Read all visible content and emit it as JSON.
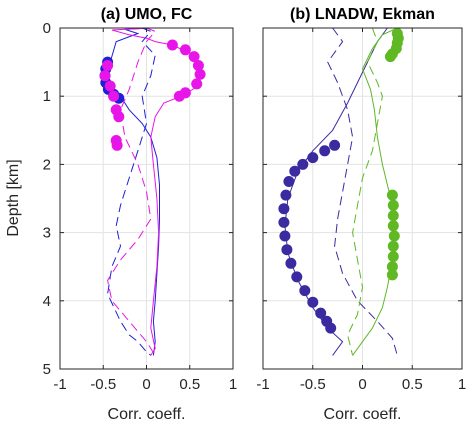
{
  "chart_data": [
    {
      "type": "line",
      "title": "(a) UMO, FC",
      "xlabel": "Corr. coeff.",
      "ylabel": "Depth [km]",
      "xlim": [
        -1,
        1
      ],
      "ylim": [
        0,
        5
      ],
      "y_reversed": true,
      "grid": true,
      "xticks": [
        "-1",
        "-0.5",
        "0",
        "0.5",
        "1"
      ],
      "yticks": [
        "0",
        "1",
        "2",
        "3",
        "4",
        "5"
      ],
      "series": [
        {
          "color": "#1f1fd6",
          "style": "solid",
          "points": [
            [
              0.05,
              0.0
            ],
            [
              -0.25,
              0.02
            ],
            [
              -0.1,
              0.08
            ],
            [
              -0.35,
              0.2
            ],
            [
              -0.42,
              0.5
            ],
            [
              -0.45,
              0.7
            ],
            [
              -0.42,
              0.9
            ],
            [
              -0.3,
              1.0
            ],
            [
              -0.2,
              1.2
            ],
            [
              -0.05,
              1.4
            ],
            [
              0.05,
              1.6
            ],
            [
              0.12,
              1.9
            ],
            [
              0.15,
              2.3
            ],
            [
              0.15,
              2.8
            ],
            [
              0.14,
              3.2
            ],
            [
              0.12,
              3.6
            ],
            [
              0.1,
              4.0
            ],
            [
              0.08,
              4.3
            ],
            [
              0.1,
              4.6
            ],
            [
              0.08,
              4.8
            ]
          ],
          "markers": [
            [
              -0.45,
              0.5
            ],
            [
              -0.47,
              0.6
            ],
            [
              -0.48,
              0.7
            ],
            [
              -0.47,
              0.8
            ],
            [
              -0.44,
              0.9
            ],
            [
              -0.38,
              0.97
            ],
            [
              -0.32,
              1.03
            ]
          ]
        },
        {
          "color": "#e815e8",
          "style": "solid",
          "points": [
            [
              0.05,
              0.0
            ],
            [
              -0.4,
              0.03
            ],
            [
              -0.2,
              0.1
            ],
            [
              0.0,
              0.15
            ],
            [
              0.1,
              0.2
            ],
            [
              0.3,
              0.25
            ],
            [
              0.55,
              0.4
            ],
            [
              0.62,
              0.65
            ],
            [
              0.6,
              0.85
            ],
            [
              0.4,
              1.0
            ],
            [
              0.2,
              1.1
            ],
            [
              0.1,
              1.3
            ],
            [
              0.05,
              1.6
            ],
            [
              0.08,
              2.0
            ],
            [
              0.12,
              2.5
            ],
            [
              0.14,
              3.0
            ],
            [
              0.12,
              3.5
            ],
            [
              0.08,
              4.0
            ],
            [
              0.05,
              4.4
            ],
            [
              0.1,
              4.7
            ],
            [
              0.05,
              4.8
            ]
          ],
          "markers": [
            [
              0.3,
              0.25
            ],
            [
              0.45,
              0.32
            ],
            [
              0.55,
              0.42
            ],
            [
              0.6,
              0.55
            ],
            [
              0.62,
              0.68
            ],
            [
              0.58,
              0.82
            ],
            [
              0.45,
              0.95
            ],
            [
              0.38,
              1.0
            ],
            [
              -0.45,
              0.55
            ],
            [
              -0.48,
              0.7
            ],
            [
              -0.42,
              0.85
            ],
            [
              -0.38,
              1.0
            ],
            [
              -0.35,
              1.2
            ],
            [
              -0.32,
              1.3
            ],
            [
              -0.35,
              1.65
            ],
            [
              -0.34,
              1.72
            ]
          ]
        },
        {
          "color": "#1f1fd6",
          "style": "dashed",
          "points": [
            [
              -0.05,
              0.0
            ],
            [
              0.05,
              0.05
            ],
            [
              -0.05,
              0.2
            ],
            [
              0.1,
              0.4
            ],
            [
              0.05,
              0.7
            ],
            [
              -0.05,
              1.0
            ],
            [
              0.0,
              1.4
            ],
            [
              -0.1,
              1.8
            ],
            [
              -0.2,
              2.2
            ],
            [
              -0.3,
              2.6
            ],
            [
              -0.35,
              2.9
            ],
            [
              -0.3,
              3.2
            ],
            [
              -0.4,
              3.5
            ],
            [
              -0.45,
              3.9
            ],
            [
              -0.3,
              4.3
            ],
            [
              -0.2,
              4.5
            ],
            [
              -0.1,
              4.6
            ],
            [
              0.0,
              4.75
            ],
            [
              0.05,
              4.8
            ]
          ]
        },
        {
          "color": "#e815e8",
          "style": "dashed",
          "points": [
            [
              0.0,
              0.0
            ],
            [
              0.1,
              0.05
            ],
            [
              0.0,
              0.2
            ],
            [
              -0.1,
              0.5
            ],
            [
              -0.2,
              0.9
            ],
            [
              -0.3,
              1.2
            ],
            [
              -0.25,
              1.6
            ],
            [
              -0.1,
              2.0
            ],
            [
              0.0,
              2.4
            ],
            [
              0.05,
              2.8
            ],
            [
              -0.1,
              3.1
            ],
            [
              -0.3,
              3.4
            ],
            [
              -0.45,
              3.7
            ],
            [
              -0.4,
              4.0
            ],
            [
              -0.2,
              4.3
            ],
            [
              0.0,
              4.6
            ],
            [
              0.1,
              4.8
            ]
          ]
        }
      ]
    },
    {
      "type": "line",
      "title": "(b) LNADW, Ekman",
      "xlabel": "Corr. coeff.",
      "ylabel": "",
      "xlim": [
        -1,
        1
      ],
      "ylim": [
        0,
        5
      ],
      "y_reversed": true,
      "grid": true,
      "xticks": [
        "-1",
        "-0.5",
        "0",
        "0.5",
        "1"
      ],
      "yticks": [],
      "series": [
        {
          "color": "#3b2ba0",
          "style": "solid",
          "points": [
            [
              0.25,
              0.0
            ],
            [
              0.15,
              0.2
            ],
            [
              0.05,
              0.5
            ],
            [
              -0.05,
              0.8
            ],
            [
              -0.15,
              1.1
            ],
            [
              -0.3,
              1.5
            ],
            [
              -0.5,
              1.8
            ],
            [
              -0.65,
              2.1
            ],
            [
              -0.75,
              2.5
            ],
            [
              -0.78,
              2.9
            ],
            [
              -0.75,
              3.3
            ],
            [
              -0.65,
              3.7
            ],
            [
              -0.5,
              4.1
            ],
            [
              -0.35,
              4.4
            ],
            [
              -0.2,
              4.6
            ],
            [
              -0.3,
              4.8
            ]
          ],
          "markers": [
            [
              -0.28,
              1.72
            ],
            [
              -0.38,
              1.8
            ],
            [
              -0.5,
              1.9
            ],
            [
              -0.6,
              2.0
            ],
            [
              -0.68,
              2.1
            ],
            [
              -0.74,
              2.25
            ],
            [
              -0.77,
              2.45
            ],
            [
              -0.79,
              2.65
            ],
            [
              -0.79,
              2.85
            ],
            [
              -0.78,
              3.05
            ],
            [
              -0.76,
              3.25
            ],
            [
              -0.72,
              3.45
            ],
            [
              -0.66,
              3.65
            ],
            [
              -0.58,
              3.85
            ],
            [
              -0.5,
              4.02
            ],
            [
              -0.42,
              4.18
            ],
            [
              -0.36,
              4.3
            ],
            [
              -0.32,
              4.4
            ]
          ]
        },
        {
          "color": "#5fb824",
          "style": "solid",
          "points": [
            [
              0.35,
              0.0
            ],
            [
              0.2,
              0.1
            ],
            [
              0.1,
              0.3
            ],
            [
              0.0,
              0.6
            ],
            [
              0.08,
              0.9
            ],
            [
              0.12,
              1.2
            ],
            [
              0.15,
              1.6
            ],
            [
              0.2,
              2.0
            ],
            [
              0.25,
              2.3
            ],
            [
              0.3,
              2.6
            ],
            [
              0.32,
              3.0
            ],
            [
              0.3,
              3.4
            ],
            [
              0.25,
              3.8
            ],
            [
              0.2,
              4.1
            ],
            [
              0.1,
              4.4
            ],
            [
              0.0,
              4.6
            ],
            [
              -0.1,
              4.8
            ]
          ],
          "markers": [
            [
              0.35,
              0.08
            ],
            [
              0.36,
              0.15
            ],
            [
              0.35,
              0.22
            ],
            [
              0.34,
              0.3
            ],
            [
              0.3,
              0.38
            ],
            [
              0.28,
              0.42
            ],
            [
              0.3,
              2.45
            ],
            [
              0.31,
              2.6
            ],
            [
              0.31,
              2.75
            ],
            [
              0.31,
              2.9
            ],
            [
              0.32,
              3.05
            ],
            [
              0.31,
              3.2
            ],
            [
              0.31,
              3.35
            ],
            [
              0.3,
              3.5
            ],
            [
              0.3,
              3.62
            ]
          ]
        },
        {
          "color": "#3b2ba0",
          "style": "dashed",
          "points": [
            [
              -0.3,
              0.0
            ],
            [
              -0.2,
              0.2
            ],
            [
              -0.35,
              0.5
            ],
            [
              -0.25,
              0.8
            ],
            [
              -0.15,
              1.2
            ],
            [
              -0.1,
              1.6
            ],
            [
              -0.15,
              2.0
            ],
            [
              -0.2,
              2.4
            ],
            [
              -0.25,
              2.8
            ],
            [
              -0.28,
              3.2
            ],
            [
              -0.2,
              3.6
            ],
            [
              -0.05,
              4.0
            ],
            [
              0.15,
              4.3
            ],
            [
              0.3,
              4.55
            ],
            [
              0.35,
              4.8
            ]
          ]
        },
        {
          "color": "#5fb824",
          "style": "dashed",
          "points": [
            [
              0.1,
              0.0
            ],
            [
              0.15,
              0.2
            ],
            [
              0.05,
              0.5
            ],
            [
              0.15,
              0.8
            ],
            [
              0.2,
              1.0
            ],
            [
              0.15,
              1.4
            ],
            [
              0.1,
              1.8
            ],
            [
              0.0,
              2.2
            ],
            [
              -0.05,
              2.6
            ],
            [
              -0.1,
              3.0
            ],
            [
              -0.05,
              3.4
            ],
            [
              0.0,
              3.8
            ],
            [
              -0.05,
              4.2
            ],
            [
              -0.15,
              4.5
            ],
            [
              -0.1,
              4.8
            ]
          ]
        }
      ]
    }
  ]
}
